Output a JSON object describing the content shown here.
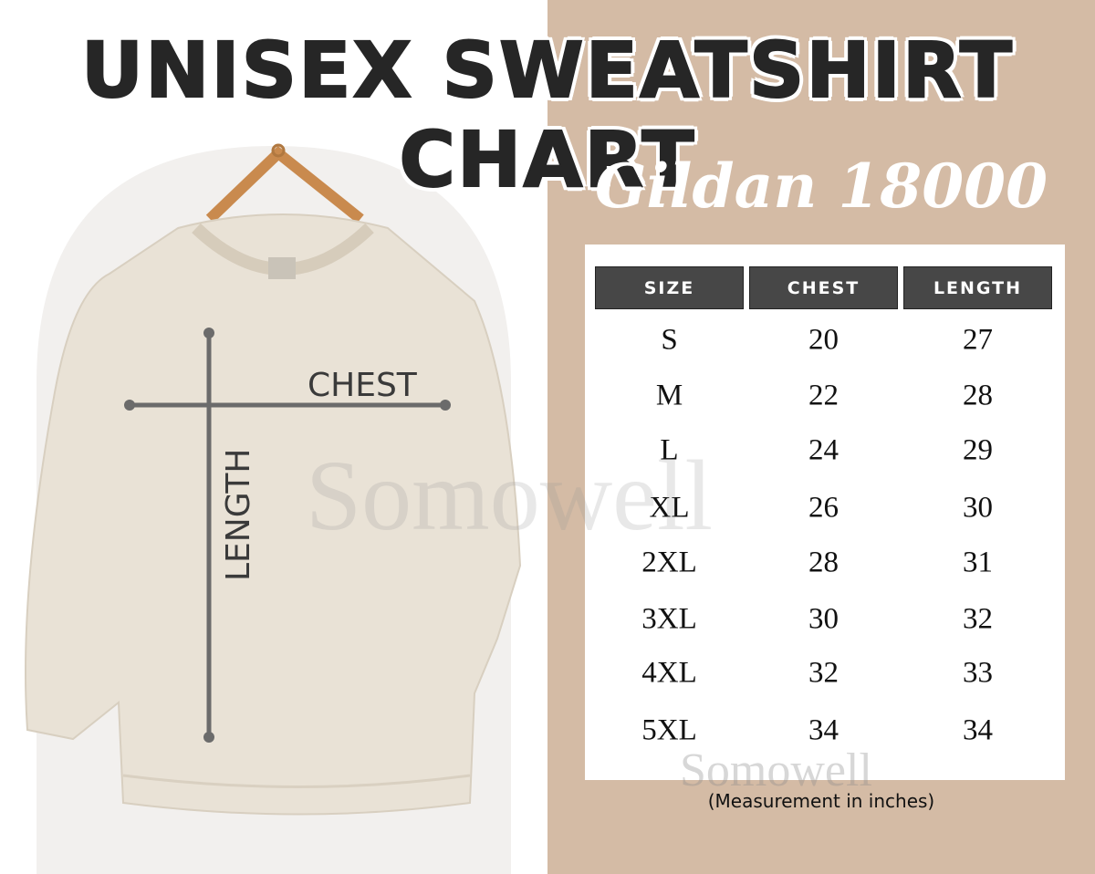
{
  "title": "UNISEX SWEATSHIRT CHART",
  "subtitle": "Gildan 18000",
  "diagram": {
    "chest_label": "CHEST",
    "length_label": "LENGTH"
  },
  "table": {
    "headers": [
      "SIZE",
      "CHEST",
      "LENGTH"
    ],
    "rows": [
      [
        "S",
        "20",
        "27"
      ],
      [
        "M",
        "22",
        "28"
      ],
      [
        "L",
        "24",
        "29"
      ],
      [
        "XL",
        "26",
        "30"
      ],
      [
        "2XL",
        "28",
        "31"
      ],
      [
        "3XL",
        "30",
        "32"
      ],
      [
        "4XL",
        "32",
        "33"
      ],
      [
        "5XL",
        "34",
        "34"
      ]
    ]
  },
  "note": "(Measurement in inches)",
  "watermark": "Somowell",
  "colors": {
    "panel": "#d4bba5",
    "header": "#474747",
    "sweatshirt": "#e9e2d6"
  }
}
